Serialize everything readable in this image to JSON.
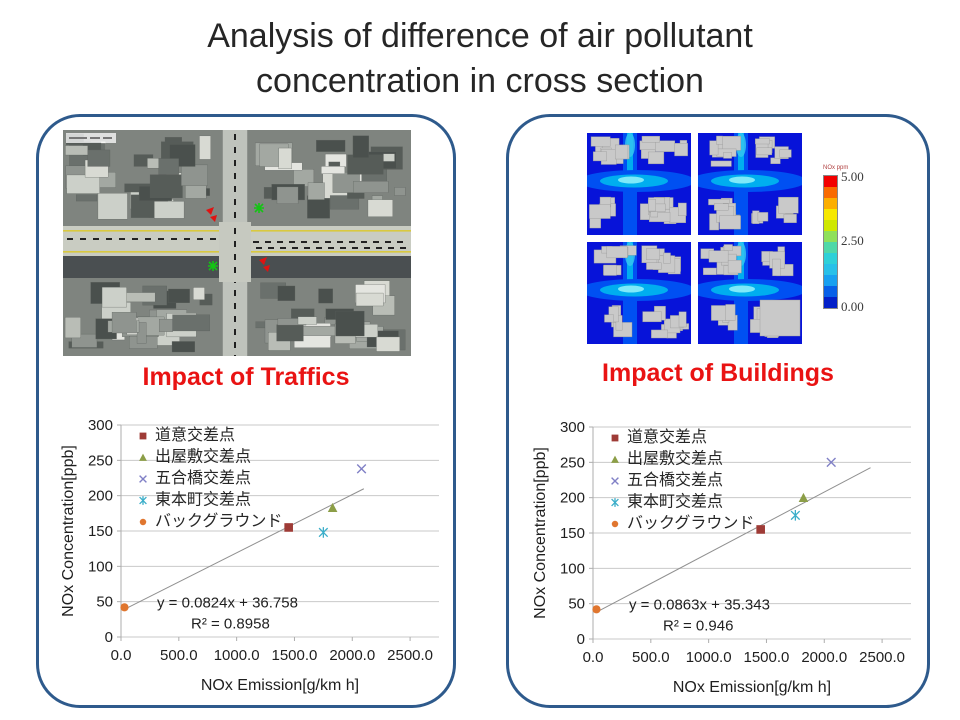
{
  "slide": {
    "title_lines": [
      "Analysis of difference of air pollutant",
      "concentration in cross section"
    ]
  },
  "panels": {
    "left": {
      "heading": "Impact of Traffics"
    },
    "right": {
      "heading": "Impact of Buildings",
      "colorbar": {
        "title": "NOx ppm",
        "top_label": "5.00",
        "mid_label": "2.50",
        "bottom_label": "0.00",
        "colors": [
          "#F20000",
          "#F96A00",
          "#FCAE00",
          "#F7E800",
          "#CFE800",
          "#8FE05A",
          "#4FD8A8",
          "#2ED0D8",
          "#28C0E8",
          "#18A0F0",
          "#0860E8",
          "#0420C8"
        ]
      }
    }
  },
  "chart_data": [
    {
      "type": "scatter",
      "title": "Impact of Traffics",
      "xlabel": "NOx Emission[g/km h]",
      "ylabel": "NOx Concentration[ppb]",
      "xlim": [
        0,
        2750
      ],
      "ylim": [
        0,
        300
      ],
      "grid": "horizontal",
      "legend_position": "inside-top-left",
      "xticks": {
        "values": [
          0,
          500,
          1000,
          1500,
          2000,
          2500
        ],
        "labels": [
          "0.0",
          "500.0",
          "1000.0",
          "1500.0",
          "2000.0",
          "2500.0"
        ]
      },
      "yticks": {
        "values": [
          0,
          50,
          100,
          150,
          200,
          250,
          300
        ],
        "labels": [
          "0",
          "50",
          "100",
          "150",
          "200",
          "250",
          "300"
        ]
      },
      "series": [
        {
          "name": "道意交差点",
          "marker": "square",
          "color": "#9E3B36",
          "points": [
            [
              1450,
              155
            ]
          ]
        },
        {
          "name": "出屋敷交差点",
          "marker": "triangle",
          "color": "#8C9E47",
          "points": [
            [
              1830,
              183
            ]
          ]
        },
        {
          "name": "五合橋交差点",
          "marker": "x",
          "color": "#8080C6",
          "points": [
            [
              2080,
              238
            ]
          ]
        },
        {
          "name": "東本町交差点",
          "marker": "x-line",
          "color": "#3BAEC9",
          "points": [
            [
              1750,
              148
            ]
          ]
        },
        {
          "name": "バックグラウンド",
          "marker": "circle",
          "color": "#E0762F",
          "points": [
            [
              30,
              42
            ]
          ]
        }
      ],
      "trendline": {
        "slope": 0.0824,
        "intercept": 36.758,
        "x_start": 60,
        "x_end": 2100,
        "color": "#909090"
      },
      "equation": "y = 0.0824x + 36.758",
      "r_squared": "R² = 0.8958"
    },
    {
      "type": "scatter",
      "title": "Impact of Buildings",
      "xlabel": "NOx Emission[g/km h]",
      "ylabel": "NOx Concentration[ppb]",
      "xlim": [
        0,
        2750
      ],
      "ylim": [
        0,
        300
      ],
      "grid": "horizontal",
      "legend_position": "inside-top-left",
      "xticks": {
        "values": [
          0,
          500,
          1000,
          1500,
          2000,
          2500
        ],
        "labels": [
          "0.0",
          "500.0",
          "1000.0",
          "1500.0",
          "2000.0",
          "2500.0"
        ]
      },
      "yticks": {
        "values": [
          0,
          50,
          100,
          150,
          200,
          250,
          300
        ],
        "labels": [
          "0",
          "50",
          "100",
          "150",
          "200",
          "250",
          "300"
        ]
      },
      "series": [
        {
          "name": "道意交差点",
          "marker": "square",
          "color": "#9E3B36",
          "points": [
            [
              1450,
              155
            ]
          ]
        },
        {
          "name": "出屋敷交差点",
          "marker": "triangle",
          "color": "#8C9E47",
          "points": [
            [
              1820,
              200
            ]
          ]
        },
        {
          "name": "五合橋交差点",
          "marker": "x",
          "color": "#8080C6",
          "points": [
            [
              2060,
              250
            ]
          ]
        },
        {
          "name": "東本町交差点",
          "marker": "x-line",
          "color": "#3BAEC9",
          "points": [
            [
              1750,
              175
            ]
          ]
        },
        {
          "name": "バックグラウンド",
          "marker": "circle",
          "color": "#E0762F",
          "points": [
            [
              30,
              42
            ]
          ]
        }
      ],
      "trendline": {
        "slope": 0.0863,
        "intercept": 35.343,
        "x_start": 60,
        "x_end": 2400,
        "color": "#909090"
      },
      "equation": "y = 0.0863x + 35.343",
      "r_squared": "R² = 0.946"
    }
  ],
  "figures": {
    "aerial_marker_red": "#E01212",
    "aerial_marker_green": "#14C414",
    "sim_background": "#0713D9",
    "sim_building": "#C9C9C9"
  }
}
